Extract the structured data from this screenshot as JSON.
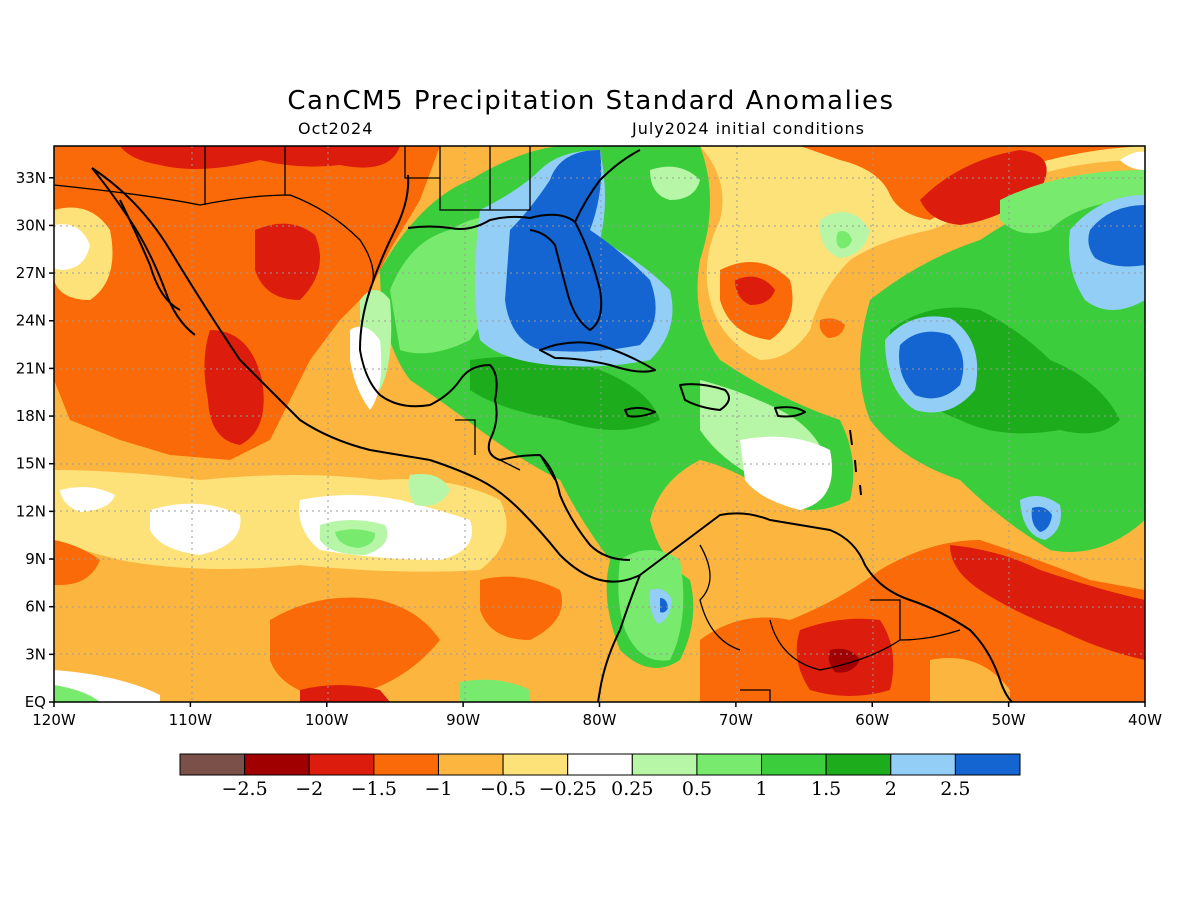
{
  "title": "CanCM5 Precipitation Standard Anomalies",
  "subtitle_left": "Oct2024",
  "subtitle_right": "July2024 initial conditions",
  "map": {
    "lon_labels": [
      "120W",
      "110W",
      "100W",
      "90W",
      "80W",
      "70W",
      "60W",
      "50W",
      "40W"
    ],
    "lat_labels": [
      "EQ",
      "3N",
      "6N",
      "9N",
      "12N",
      "15N",
      "18N",
      "21N",
      "24N",
      "27N",
      "30N",
      "33N"
    ],
    "lon_range": [
      -120,
      -40
    ],
    "lat_range": [
      0,
      35
    ],
    "grid": "dotted"
  },
  "colorbar": {
    "colors": [
      "#7a5048",
      "#a00000",
      "#dc1c0c",
      "#fa6a08",
      "#fcb640",
      "#fde27a",
      "#ffffff",
      "#b6f6a6",
      "#78ea6e",
      "#3ccd3c",
      "#1cac1c",
      "#92cef6",
      "#1464d2"
    ],
    "labels": [
      "−2.5",
      "−2",
      "−1.5",
      "−1",
      "−0.5",
      "−0.25",
      "0.25",
      "0.5",
      "1",
      "1.5",
      "2",
      "2.5"
    ]
  },
  "palette": {
    "dark_brown": "#7a5048",
    "dark_red": "#a00000",
    "red": "#dc1c0c",
    "orange": "#fa6a08",
    "light_orange": "#fcb640",
    "yellow": "#fde27a",
    "white": "#ffffff",
    "pale_green": "#b6f6a6",
    "light_green": "#78ea6e",
    "green": "#3ccd3c",
    "dark_green": "#1cac1c",
    "light_blue": "#92cef6",
    "blue": "#1464d2"
  }
}
